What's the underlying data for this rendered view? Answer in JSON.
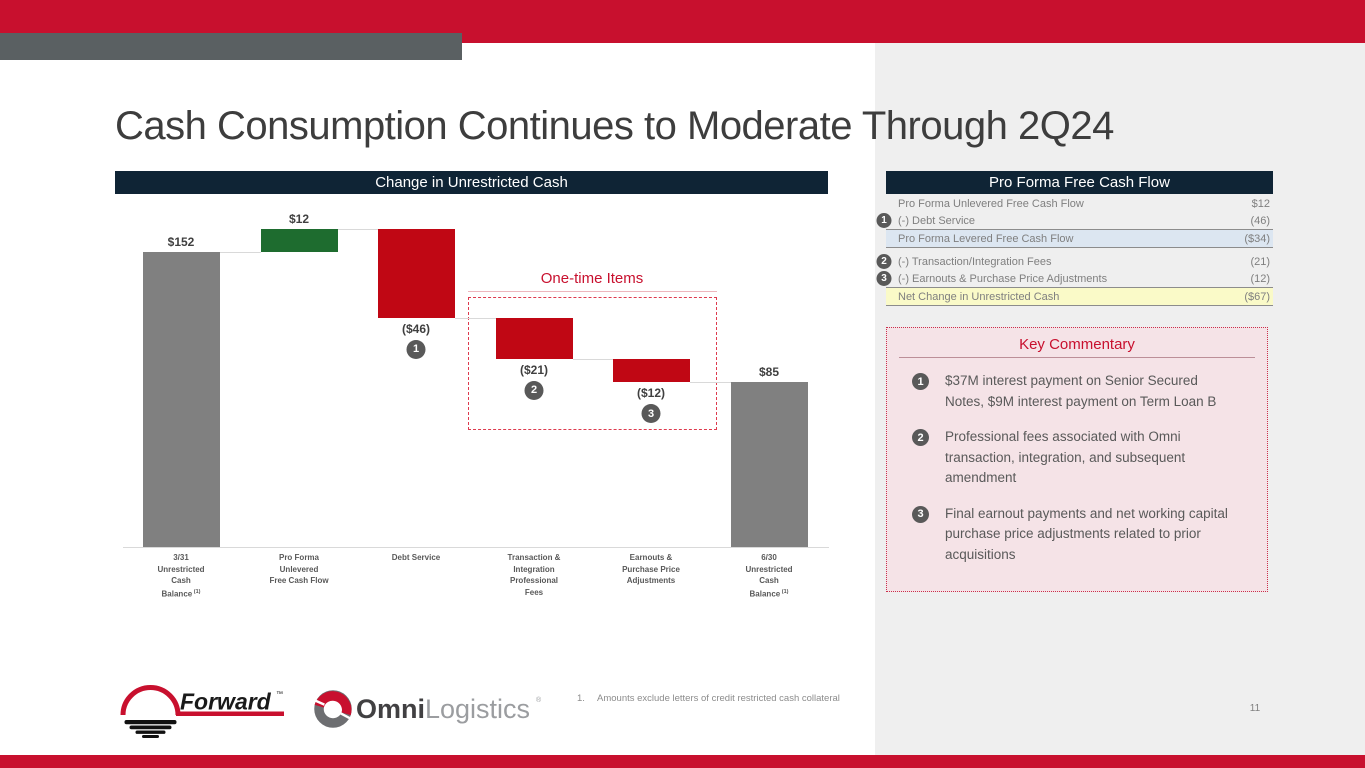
{
  "slide": {
    "title": "Cash Consumption Continues to Moderate Through 2Q24",
    "page_number": "11",
    "footnote_number": "1.",
    "footnote_text": "Amounts exclude letters of credit restricted cash collateral"
  },
  "colors": {
    "brand_red": "#C8102E",
    "accent_gray": "#5A6062",
    "panel_gray": "#EFEFEF",
    "navy": "#0F2435",
    "bar_total": "#808080",
    "bar_increase": "#1E6C2F",
    "bar_decrease": "#C00714",
    "badge_gray": "#595959",
    "highlight_blue": "#DCE6F1",
    "highlight_yellow": "#FAFAC8",
    "commentary_bg": "#F5E3E7"
  },
  "chart_data": {
    "type": "bar",
    "variant": "waterfall",
    "title": "Change in Unrestricted Cash",
    "annotation": "One-time Items",
    "xlabel": "",
    "ylabel": "",
    "unit": "$M",
    "ylim": [
      0,
      170
    ],
    "grid": false,
    "categories": [
      {
        "lines": [
          "3/31",
          "Unrestricted",
          "Cash",
          "Balance"
        ],
        "sup": "(1)"
      },
      {
        "lines": [
          "Pro Forma",
          "Unlevered",
          "Free Cash Flow"
        ],
        "sup": ""
      },
      {
        "lines": [
          "Debt Service"
        ],
        "sup": ""
      },
      {
        "lines": [
          "Transaction &",
          "Integration",
          "Professional",
          "Fees"
        ],
        "sup": ""
      },
      {
        "lines": [
          "Earnouts &",
          "Purchase Price",
          "Adjustments"
        ],
        "sup": ""
      },
      {
        "lines": [
          "6/30",
          "Unrestricted",
          "Cash",
          "Balance"
        ],
        "sup": "(1)"
      }
    ],
    "values": [
      152,
      12,
      -46,
      -21,
      -12,
      85
    ],
    "bar_types": [
      "total",
      "increase",
      "decrease",
      "decrease",
      "decrease",
      "total"
    ],
    "value_labels": [
      "$152",
      "$12",
      "($46)",
      "($21)",
      "($12)",
      "$85"
    ],
    "badges": [
      "",
      "",
      "1",
      "2",
      "3",
      ""
    ]
  },
  "table": {
    "header": "Pro Forma Free Cash Flow",
    "rows": [
      {
        "label": "Pro Forma Unlevered Free Cash Flow",
        "value": "$12",
        "style": "plain",
        "badge": "",
        "gap_before": false
      },
      {
        "label": "(-) Debt Service",
        "value": "(46)",
        "style": "plain",
        "badge": "1",
        "gap_before": false
      },
      {
        "label": "Pro Forma Levered Free Cash Flow",
        "value": "($34)",
        "style": "blue",
        "badge": "",
        "gap_before": false
      },
      {
        "label": "(-) Transaction/Integration Fees",
        "value": "(21)",
        "style": "plain",
        "badge": "2",
        "gap_before": true
      },
      {
        "label": "(-) Earnouts & Purchase Price Adjustments",
        "value": "(12)",
        "style": "plain",
        "badge": "3",
        "gap_before": false
      },
      {
        "label": "Net Change in Unrestricted Cash",
        "value": "($67)",
        "style": "yellow",
        "badge": "",
        "gap_before": false
      }
    ]
  },
  "commentary": {
    "title": "Key Commentary",
    "items": [
      {
        "badge": "1",
        "text": "$37M interest payment on Senior Secured Notes, $9M interest payment on Term Loan B"
      },
      {
        "badge": "2",
        "text": "Professional fees associated with Omni transaction, integration, and subsequent amendment"
      },
      {
        "badge": "3",
        "text": "Final earnout payments and net working capital purchase price adjustments related to prior acquisitions"
      }
    ]
  },
  "logos": {
    "forward_text": "Forward",
    "forward_tm": "™",
    "omni_primary": "Omni",
    "omni_secondary": "Logistics",
    "omni_reg": "®"
  }
}
